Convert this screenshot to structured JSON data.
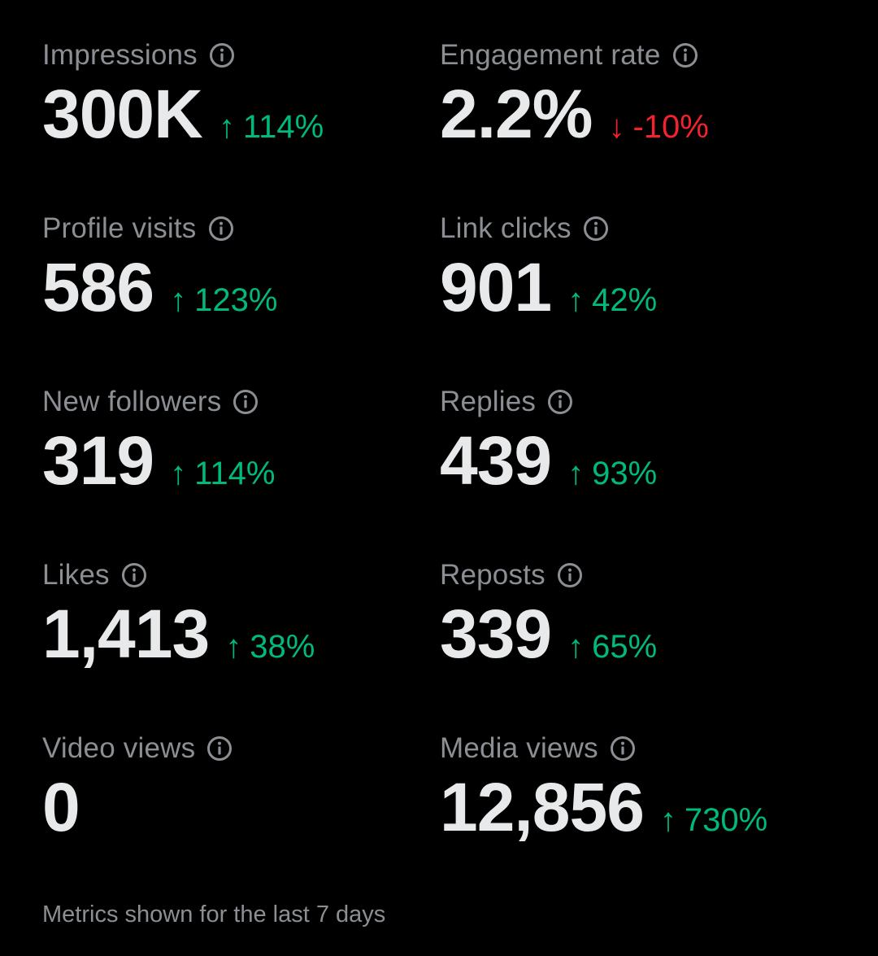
{
  "metrics": [
    {
      "key": "impressions",
      "label": "Impressions",
      "value": "300K",
      "change": "114%",
      "direction": "up",
      "arrow": "↑"
    },
    {
      "key": "engagement-rate",
      "label": "Engagement rate",
      "value": "2.2%",
      "change": "-10%",
      "direction": "down",
      "arrow": "↓"
    },
    {
      "key": "profile-visits",
      "label": "Profile visits",
      "value": "586",
      "change": "123%",
      "direction": "up",
      "arrow": "↑"
    },
    {
      "key": "link-clicks",
      "label": "Link clicks",
      "value": "901",
      "change": "42%",
      "direction": "up",
      "arrow": "↑"
    },
    {
      "key": "new-followers",
      "label": "New followers",
      "value": "319",
      "change": "114%",
      "direction": "up",
      "arrow": "↑"
    },
    {
      "key": "replies",
      "label": "Replies",
      "value": "439",
      "change": "93%",
      "direction": "up",
      "arrow": "↑"
    },
    {
      "key": "likes",
      "label": "Likes",
      "value": "1,413",
      "change": "38%",
      "direction": "up",
      "arrow": "↑"
    },
    {
      "key": "reposts",
      "label": "Reposts",
      "value": "339",
      "change": "65%",
      "direction": "up",
      "arrow": "↑"
    },
    {
      "key": "video-views",
      "label": "Video views",
      "value": "0",
      "change": "",
      "direction": "none",
      "arrow": ""
    },
    {
      "key": "media-views",
      "label": "Media views",
      "value": "12,856",
      "change": "730%",
      "direction": "up",
      "arrow": "↑"
    }
  ],
  "footer": "Metrics shown for the last 7 days",
  "colors": {
    "background": "#000000",
    "primary_text": "#e7e9ea",
    "secondary_text": "#8b8f94",
    "positive": "#00ba7c",
    "negative": "#f4212e"
  },
  "icons": {
    "info": "info-circle-icon",
    "up": "arrow-up-icon",
    "down": "arrow-down-icon"
  }
}
